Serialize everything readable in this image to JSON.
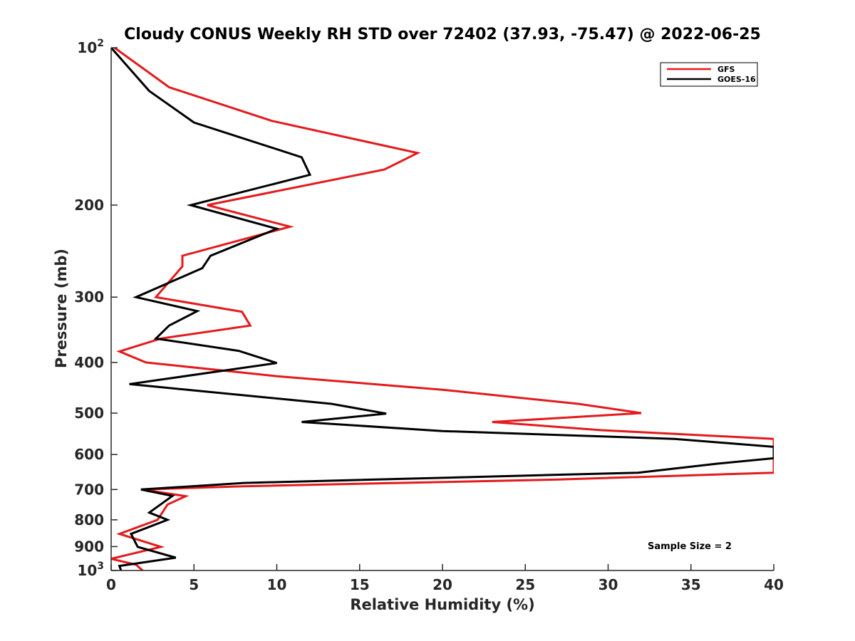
{
  "chart_data": {
    "type": "line",
    "title": "Cloudy CONUS Weekly RH STD over 72402 (37.93, -75.47) @ 2022-06-25",
    "xlabel": "Relative Humidity (%)",
    "ylabel": "Pressure (mb)",
    "xlim": [
      0,
      40
    ],
    "ylim": [
      100,
      1000
    ],
    "y_scale": "log",
    "y_reversed": true,
    "xticks": [
      "0",
      "5",
      "10",
      "15",
      "20",
      "25",
      "30",
      "35",
      "40"
    ],
    "yticks": [
      {
        "value": 100,
        "base": "10",
        "exp": "2"
      },
      {
        "value": 200,
        "label": "200"
      },
      {
        "value": 300,
        "label": "300"
      },
      {
        "value": 400,
        "label": "400"
      },
      {
        "value": 500,
        "label": "500"
      },
      {
        "value": 600,
        "label": "600"
      },
      {
        "value": 700,
        "label": "700"
      },
      {
        "value": 800,
        "label": "800"
      },
      {
        "value": 900,
        "label": "900"
      },
      {
        "value": 1000,
        "base": "10",
        "exp": "3"
      }
    ],
    "legend_position": "top-right",
    "series": [
      {
        "name": "GFS",
        "color": "#e41a1c",
        "points": [
          [
            0.2,
            100
          ],
          [
            3.5,
            119
          ],
          [
            9.7,
            138
          ],
          [
            18.5,
            159
          ],
          [
            16.5,
            171
          ],
          [
            5.8,
            200
          ],
          [
            10.8,
            220
          ],
          [
            4.3,
            250
          ],
          [
            4.3,
            262
          ],
          [
            2.7,
            300
          ],
          [
            7.9,
            320
          ],
          [
            8.4,
            340
          ],
          [
            3.0,
            360
          ],
          [
            0.5,
            381
          ],
          [
            2.1,
            400
          ],
          [
            10.0,
            425
          ],
          [
            20.0,
            451
          ],
          [
            28.2,
            480
          ],
          [
            32.0,
            500
          ],
          [
            23.0,
            520
          ],
          [
            29.6,
            539
          ],
          [
            40.0,
            560
          ],
          [
            40.0,
            650
          ],
          [
            27.0,
            670
          ],
          [
            8.0,
            690
          ],
          [
            1.9,
            700
          ],
          [
            4.5,
            721
          ],
          [
            3.4,
            748
          ],
          [
            2.8,
            800
          ],
          [
            0.5,
            851
          ],
          [
            3.0,
            901
          ],
          [
            0.0,
            950
          ],
          [
            1.5,
            975
          ],
          [
            1.9,
            1000
          ]
        ]
      },
      {
        "name": "GOES-16",
        "color": "#000000",
        "points": [
          [
            0.0,
            100
          ],
          [
            2.3,
            121
          ],
          [
            5.0,
            139
          ],
          [
            11.5,
            162
          ],
          [
            12.0,
            175
          ],
          [
            4.8,
            200
          ],
          [
            10.0,
            222
          ],
          [
            6.0,
            250
          ],
          [
            5.5,
            264
          ],
          [
            1.5,
            300
          ],
          [
            5.2,
            319
          ],
          [
            3.5,
            340
          ],
          [
            2.7,
            360
          ],
          [
            7.7,
            380
          ],
          [
            10.0,
            401
          ],
          [
            1.1,
            440
          ],
          [
            13.3,
            480
          ],
          [
            16.6,
            501
          ],
          [
            11.5,
            520
          ],
          [
            20.0,
            541
          ],
          [
            34.0,
            560
          ],
          [
            40.0,
            580
          ],
          [
            40.0,
            610
          ],
          [
            36.5,
            625
          ],
          [
            31.8,
            650
          ],
          [
            8.0,
            680
          ],
          [
            1.8,
            700
          ],
          [
            3.7,
            720
          ],
          [
            2.3,
            775
          ],
          [
            3.4,
            800
          ],
          [
            1.2,
            851
          ],
          [
            1.6,
            901
          ],
          [
            3.9,
            945
          ],
          [
            0.5,
            980
          ],
          [
            0.6,
            1000
          ]
        ]
      }
    ],
    "annotation": "Sample Size = 2"
  }
}
